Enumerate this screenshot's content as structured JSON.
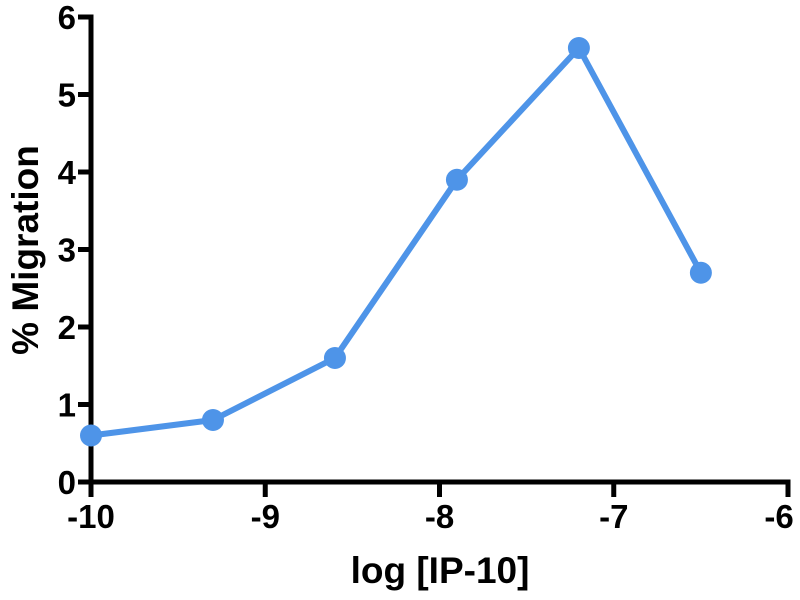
{
  "figure": {
    "background_color": "#ffffff"
  },
  "chart_data": {
    "type": "line",
    "title": "",
    "xlabel": "log [IP-10]",
    "ylabel": "% Migration",
    "x": [
      -10,
      -9.3,
      -8.6,
      -7.9,
      -7.2,
      -6.5
    ],
    "y": [
      0.6,
      0.8,
      1.6,
      3.9,
      5.6,
      2.7
    ],
    "xlim": [
      -10,
      -6
    ],
    "ylim": [
      0,
      6
    ],
    "xticks": [
      -10,
      -9,
      -8,
      -7,
      -6
    ],
    "xtick_labels": [
      "-10",
      "-9",
      "-8",
      "-7",
      "-6"
    ],
    "yticks": [
      0,
      1,
      2,
      3,
      4,
      5,
      6
    ],
    "ytick_labels": [
      "0",
      "1",
      "2",
      "3",
      "4",
      "5",
      "6"
    ],
    "grid": false,
    "legend_position": "none",
    "line_color": "#4E94E8",
    "marker": "circle",
    "axis_color": "#000000"
  }
}
